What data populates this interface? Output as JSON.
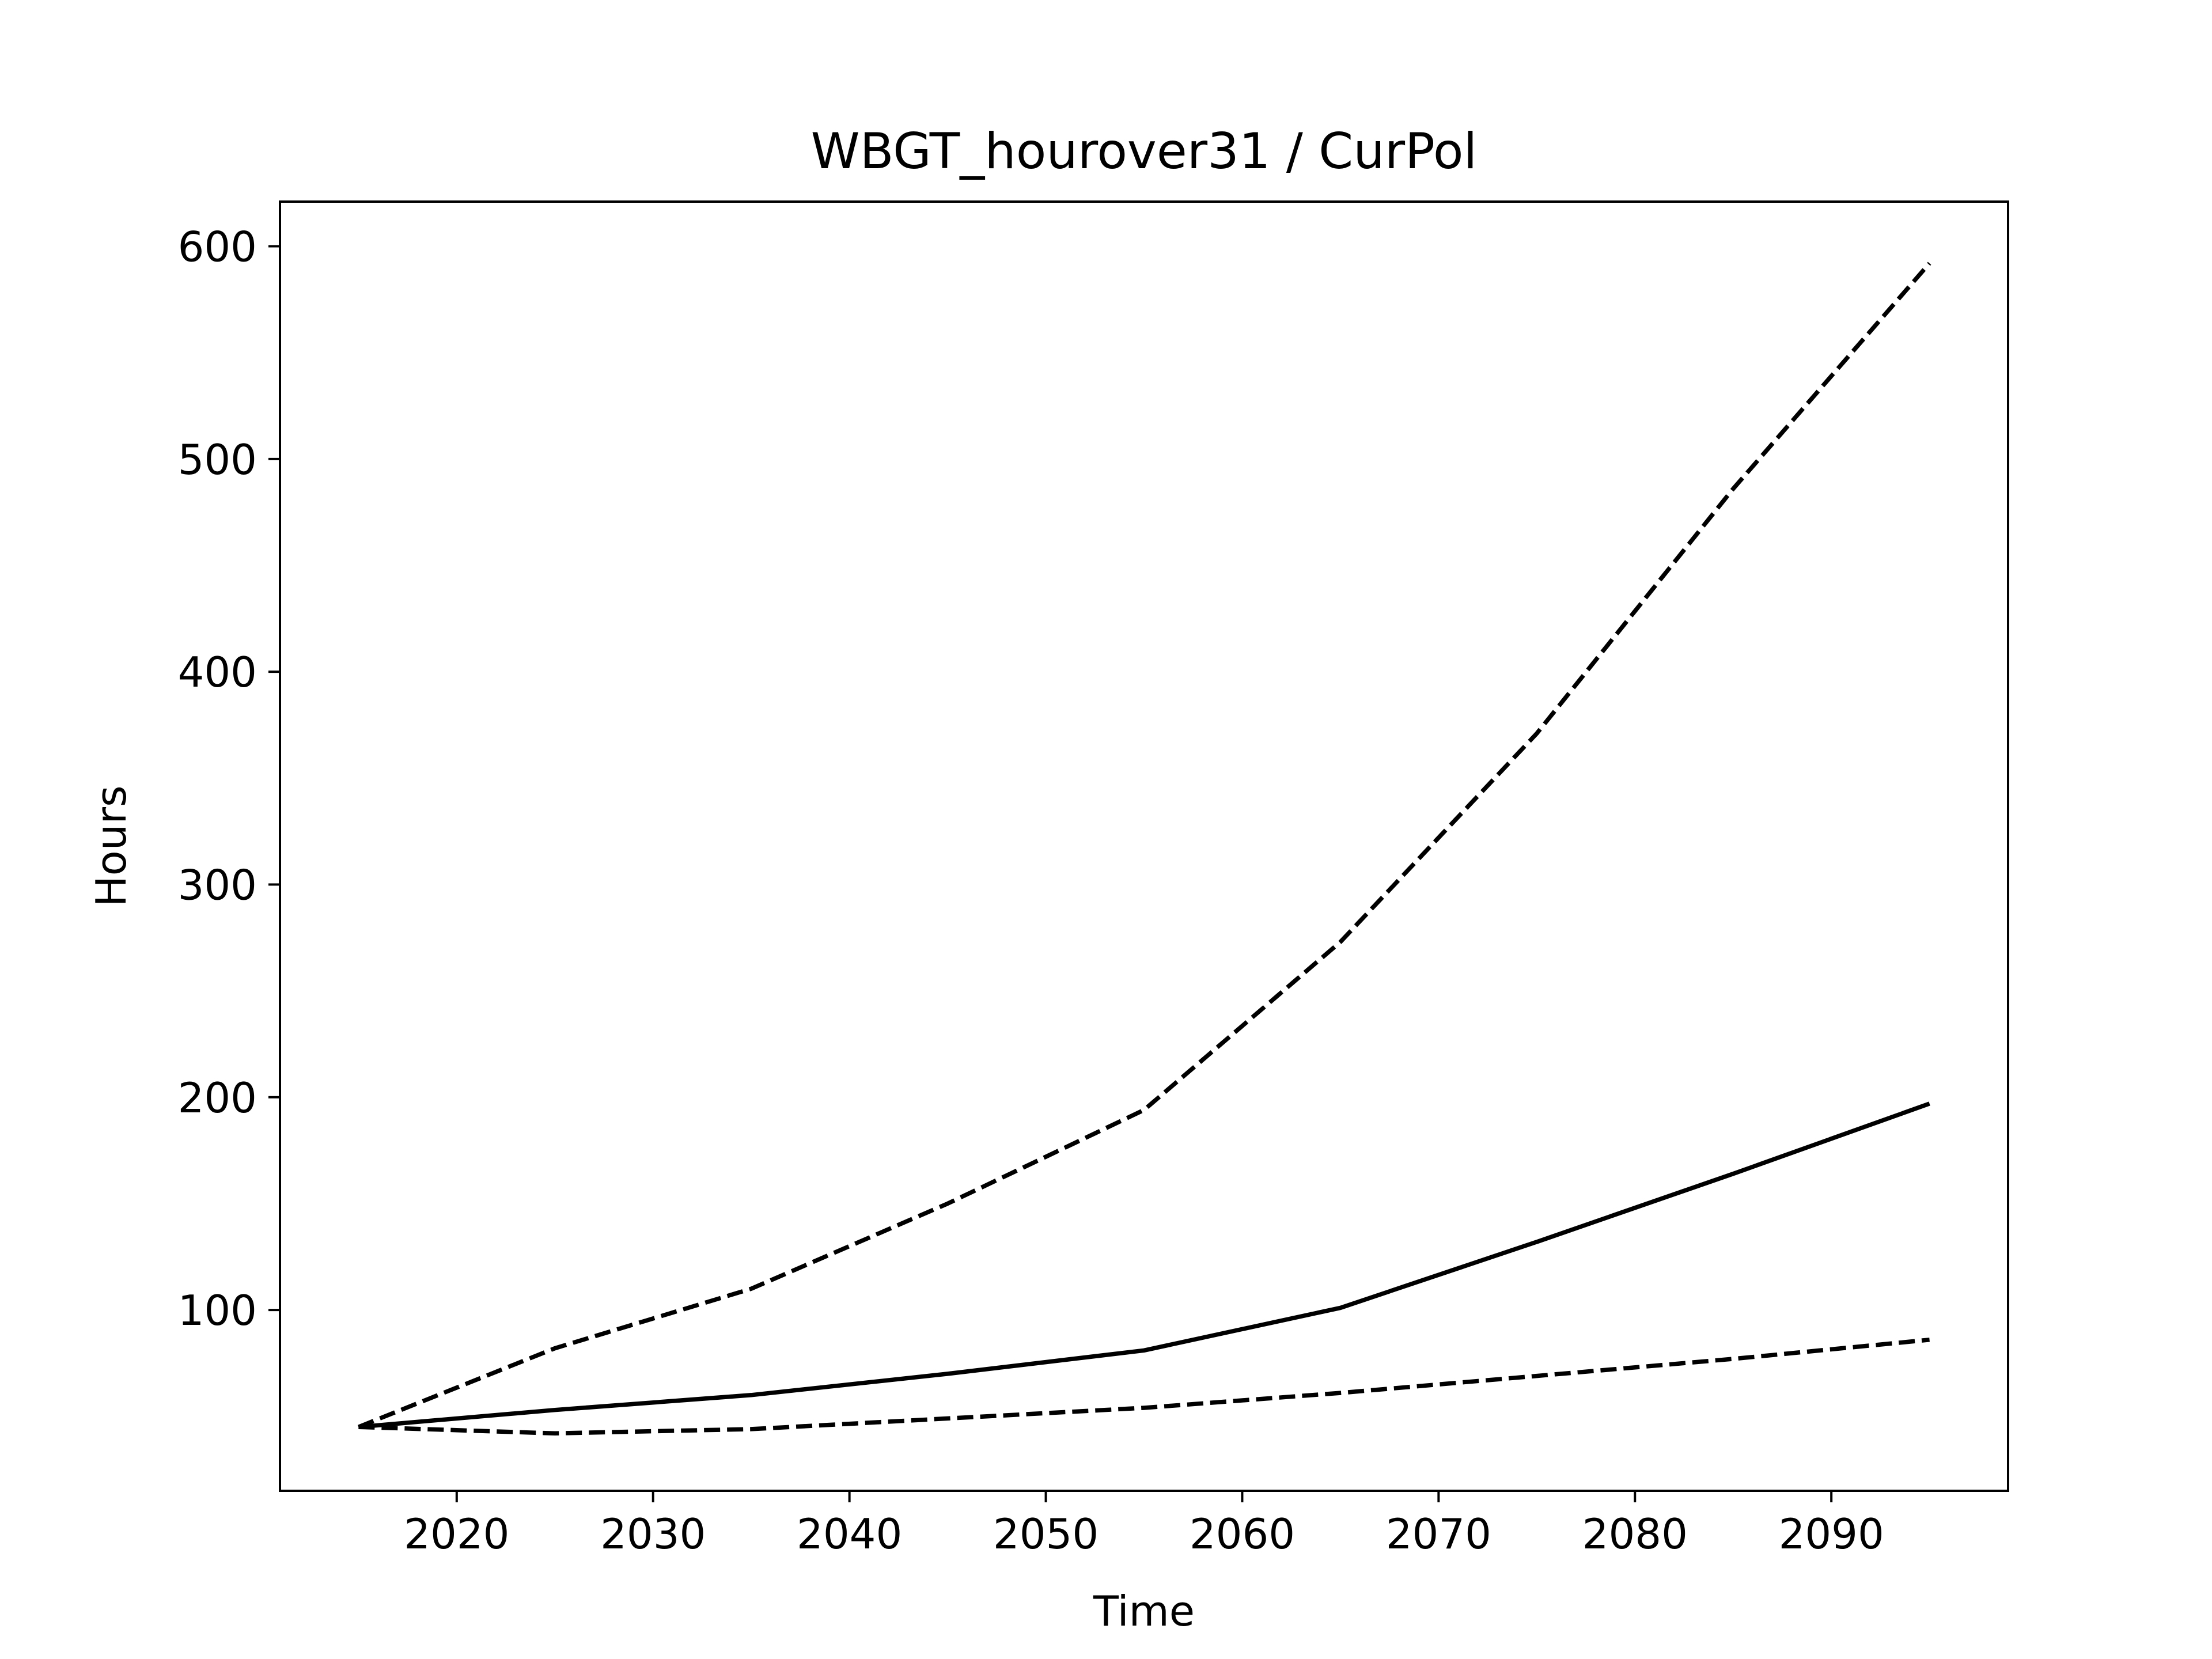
{
  "chart_data": {
    "type": "line",
    "title": "WBGT_hourover31 / CurPol",
    "xlabel": "Time",
    "ylabel": "Hours",
    "xlim": [
      2011,
      2099
    ],
    "ylim": [
      15,
      621
    ],
    "x_ticks": [
      2020,
      2030,
      2040,
      2050,
      2060,
      2070,
      2080,
      2090
    ],
    "y_ticks": [
      100,
      200,
      300,
      400,
      500,
      600
    ],
    "grid": false,
    "legend": "none",
    "x": [
      2015,
      2025,
      2035,
      2045,
      2055,
      2065,
      2075,
      2085,
      2095
    ],
    "series": [
      {
        "line_style": "dashed",
        "color": "#000000",
        "values": [
          45,
          82,
          110,
          150,
          194,
          273,
          371,
          486,
          592
        ]
      },
      {
        "line_style": "solid",
        "color": "#000000",
        "values": [
          45,
          53,
          60,
          70,
          81,
          101,
          132,
          164,
          197
        ]
      },
      {
        "line_style": "dashed",
        "color": "#000000",
        "values": [
          45,
          42,
          44,
          49,
          54,
          61,
          69,
          77,
          86
        ]
      }
    ]
  }
}
